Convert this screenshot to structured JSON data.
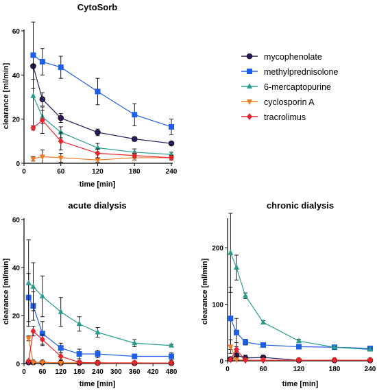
{
  "legend": {
    "location": "right of CytoSorb panel",
    "entries": [
      {
        "name": "mycophenolate",
        "color": "#2b1b5a",
        "marker": "circle"
      },
      {
        "name": "methylprednisolone",
        "color": "#1f5fe6",
        "marker": "square"
      },
      {
        "name": "6-mercaptopurine",
        "color": "#2a9d8f",
        "marker": "triangle-up"
      },
      {
        "name": "cyclosporin A",
        "color": "#f07a21",
        "marker": "triangle-down"
      },
      {
        "name": "tracrolimus",
        "color": "#e3262e",
        "marker": "diamond"
      }
    ]
  },
  "chart_data": [
    {
      "type": "line",
      "title": "CytoSorb",
      "xlabel": "time [min]",
      "ylabel": "clearance [ml/min]",
      "xlim": [
        0,
        240
      ],
      "ylim": [
        0,
        60
      ],
      "xticks": [
        0,
        60,
        120,
        180,
        240
      ],
      "yticks": [
        0,
        20,
        40,
        60
      ],
      "series": [
        {
          "name": "mycophenolate",
          "x": [
            15,
            30,
            60,
            120,
            180,
            240
          ],
          "y": [
            44,
            29,
            20.5,
            14,
            11,
            9
          ],
          "err": [
            6,
            3,
            2,
            1.5,
            1,
            0.5
          ]
        },
        {
          "name": "methylprednisolone",
          "x": [
            15,
            30,
            60,
            120,
            180,
            240
          ],
          "y": [
            49,
            46,
            43.5,
            32.5,
            22,
            16.5
          ],
          "err": [
            15,
            6,
            5,
            6,
            5,
            3.5
          ]
        },
        {
          "name": "6-mercaptopurine",
          "x": [
            15,
            30,
            60,
            120,
            180,
            240
          ],
          "y": [
            30.5,
            21,
            14,
            7,
            5,
            4
          ],
          "err": [
            14,
            3,
            2.5,
            2,
            1.5,
            1
          ]
        },
        {
          "name": "cyclosporin A",
          "x": [
            15,
            30,
            60,
            120,
            180,
            240
          ],
          "y": [
            2,
            3,
            2.5,
            1.5,
            2.5,
            2.5
          ],
          "err": [
            1,
            3,
            2,
            1,
            1,
            1
          ]
        },
        {
          "name": "tracrolimus",
          "x": [
            15,
            30,
            60,
            120,
            180,
            240
          ],
          "y": [
            16,
            19.5,
            10,
            4.5,
            3.5,
            2.5
          ],
          "err": [
            1,
            6,
            4,
            2,
            1,
            1
          ]
        }
      ]
    },
    {
      "type": "line",
      "title": "acute dialysis",
      "xlabel": "time [min]",
      "ylabel": "clearance [ml/min]",
      "xlim": [
        0,
        480
      ],
      "ylim": [
        0,
        60
      ],
      "xticks": [
        0,
        60,
        120,
        180,
        240,
        300,
        360,
        420,
        480
      ],
      "yticks": [
        0,
        20,
        40,
        60
      ],
      "series": [
        {
          "name": "mycophenolate",
          "x": [
            15,
            30,
            60,
            120,
            180,
            240,
            360,
            480
          ],
          "y": [
            0.5,
            0.5,
            0.5,
            0.3,
            0.3,
            0.3,
            0.2,
            0.2
          ],
          "err": [
            0.5,
            0.5,
            0.5,
            0.3,
            0.3,
            0.3,
            0.2,
            0.2
          ]
        },
        {
          "name": "methylprednisolone",
          "x": [
            15,
            30,
            60,
            120,
            180,
            240,
            360,
            480
          ],
          "y": [
            27.5,
            24,
            12.5,
            6.5,
            4,
            4,
            3,
            3
          ],
          "err": [
            10,
            6,
            5,
            2,
            2,
            1.5,
            1,
            1.5
          ]
        },
        {
          "name": "6-mercaptopurine",
          "x": [
            15,
            30,
            60,
            120,
            180,
            240,
            360,
            480
          ],
          "y": [
            33.5,
            32,
            28,
            21.5,
            16.5,
            13,
            8.5,
            7.5
          ],
          "err": [
            18,
            10,
            8.5,
            6,
            3,
            2,
            1.5,
            0.5
          ]
        },
        {
          "name": "cyclosporin A",
          "x": [
            15,
            30,
            60,
            120,
            180,
            240,
            360,
            480
          ],
          "y": [
            10.5,
            0.5,
            0.5,
            0.3,
            0.3,
            0.2,
            0.2,
            0.2
          ],
          "err": [
            1,
            0.5,
            0.5,
            0.3,
            0.3,
            0.2,
            0.2,
            0.2
          ]
        },
        {
          "name": "tracrolimus",
          "x": [
            15,
            30,
            60,
            120,
            180,
            240,
            360,
            480
          ],
          "y": [
            1,
            13.5,
            10,
            3,
            0.5,
            0.3,
            0.3,
            0.2
          ],
          "err": [
            0.5,
            2,
            2,
            1.5,
            0.5,
            0.3,
            0.3,
            0.2
          ]
        }
      ]
    },
    {
      "type": "line",
      "title": "chronic dialysis",
      "xlabel": "time [min]",
      "ylabel": "clearance [ml/min]",
      "xlim": [
        0,
        240
      ],
      "ylim": [
        0,
        250
      ],
      "xticks": [
        0,
        60,
        120,
        180,
        240
      ],
      "yticks": [
        0,
        100,
        200
      ],
      "series": [
        {
          "name": "mycophenolate",
          "x": [
            5,
            15,
            30,
            60,
            120,
            180,
            240
          ],
          "y": [
            3,
            10,
            5,
            6,
            1,
            1,
            1
          ],
          "err": [
            3,
            6,
            5,
            4,
            1,
            1,
            1
          ]
        },
        {
          "name": "methylprednisolone",
          "x": [
            5,
            15,
            30,
            60,
            120,
            180,
            240
          ],
          "y": [
            75,
            50,
            33,
            28,
            25,
            24,
            22
          ],
          "err": [
            55,
            25,
            5,
            3,
            2,
            2,
            2
          ]
        },
        {
          "name": "6-mercaptopurine",
          "x": [
            5,
            15,
            30,
            60,
            120,
            180,
            240
          ],
          "y": [
            191,
            165,
            115,
            68,
            35,
            24,
            20
          ],
          "err": [
            70,
            22,
            5,
            3,
            3,
            2,
            2
          ]
        },
        {
          "name": "cyclosporin A",
          "x": [
            5,
            15,
            30,
            60,
            120,
            180,
            240
          ],
          "y": [
            25,
            2,
            1,
            1,
            1,
            1,
            1
          ],
          "err": [
            12,
            1,
            1,
            1,
            1,
            1,
            1
          ]
        },
        {
          "name": "tracrolimus",
          "x": [
            5,
            15,
            30,
            60,
            120,
            180,
            240
          ],
          "y": [
            2,
            20,
            1,
            1,
            1,
            1,
            1
          ],
          "err": [
            2,
            12,
            1,
            1,
            1,
            1,
            1
          ]
        }
      ]
    }
  ]
}
